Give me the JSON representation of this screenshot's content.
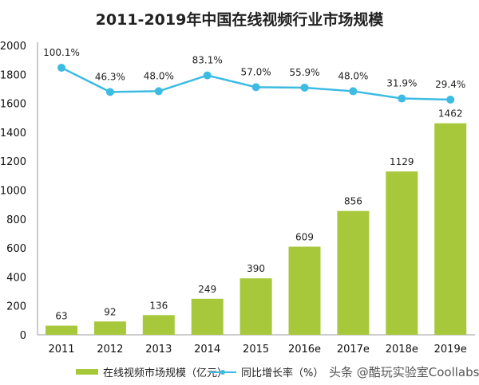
{
  "chart_data": {
    "type": "bar+line",
    "title": "2011-2019年中国在线视频行业市场规模",
    "categories": [
      "2011",
      "2012",
      "2013",
      "2014",
      "2015",
      "2016e",
      "2017e",
      "2018e",
      "2019e"
    ],
    "series": [
      {
        "name": "在线视频市场规模（亿元）",
        "type": "bar",
        "axis": "left",
        "color": "#a8c83c",
        "values": [
          63,
          92,
          136,
          249,
          390,
          609,
          856,
          1129,
          1462
        ]
      },
      {
        "name": "同比增长率（%）",
        "type": "line",
        "axis": "right-hidden",
        "color": "#3dbbe3",
        "values": [
          100.1,
          46.3,
          48.0,
          83.1,
          57.0,
          55.9,
          48.0,
          31.9,
          29.4
        ],
        "labels": [
          "100.1%",
          "46.3%",
          "48.0%",
          "83.1%",
          "57.0%",
          "55.9%",
          "48.0%",
          "31.9%",
          "29.4%"
        ]
      }
    ],
    "yticks": [
      "0",
      "200",
      "400",
      "600",
      "800",
      "1000",
      "1200",
      "1400",
      "1600",
      "1800",
      "2000"
    ],
    "ylim": [
      0,
      2000
    ],
    "grid": false,
    "legend": "bottom"
  },
  "watermark": "头条 @酷玩实验室Coollabs"
}
